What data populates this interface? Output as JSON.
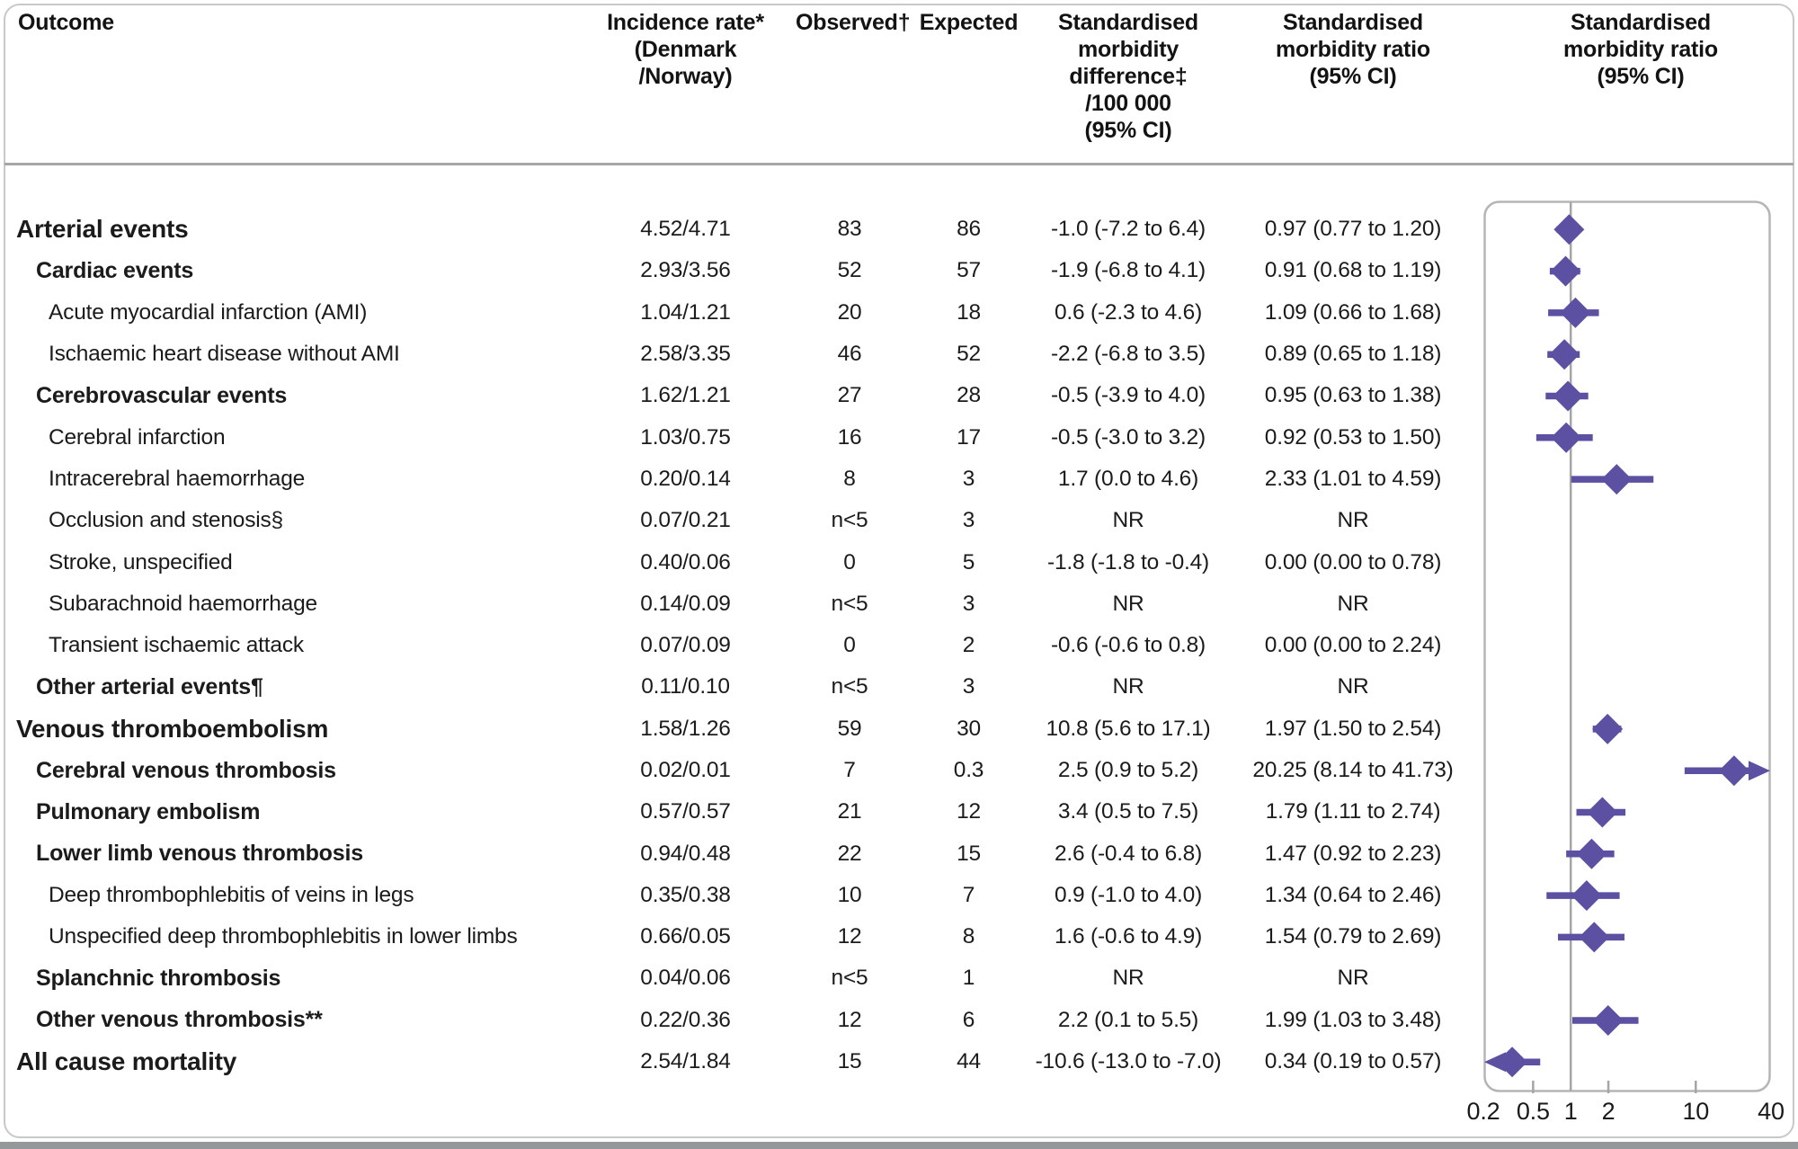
{
  "figure": {
    "columns": [
      {
        "id": "outcome",
        "label": "Outcome"
      },
      {
        "id": "incidence_rate",
        "label": "Incidence rate*\n(Denmark\n/Norway)"
      },
      {
        "id": "observed",
        "label": "Observed†"
      },
      {
        "id": "expected",
        "label": "Expected"
      },
      {
        "id": "smr_difference",
        "label": "Standardised\nmorbidity\ndifference‡\n/100 000\n(95% CI)"
      },
      {
        "id": "smr_ratio",
        "label": "Standardised\nmorbidity ratio\n(95% CI)"
      },
      {
        "id": "smr_ratio_plot",
        "label": "Standardised\nmorbidity ratio\n(95% CI)"
      }
    ]
  },
  "chart_data": {
    "type": "scatter",
    "variant": "forest-plot",
    "panel_title": "Standardised morbidity ratio (95% CI)",
    "x_scale": "log",
    "x_range": [
      0.2,
      40
    ],
    "x_ticks": [
      0.2,
      0.5,
      1,
      2,
      10,
      40
    ],
    "x_tick_labels": [
      "0.2",
      "0.5",
      "1",
      "2",
      "10",
      "40"
    ],
    "tick_marks": [
      0.5,
      2,
      10
    ],
    "reference_line": 1,
    "marker_color": "#5b50a2",
    "frame_color": "#b5b5b5",
    "axis_color": "#a5a5a5",
    "rows": [
      {
        "label": "Arterial events",
        "level": 0,
        "incidence_rate": "4.52/4.71",
        "observed": "83",
        "expected": "86",
        "smr_difference": "-1.0 (-7.2 to 6.4)",
        "smr_ratio": "0.97 (0.77 to 1.20)",
        "smr": 0.97,
        "lo": 0.77,
        "hi": 1.2,
        "clip": null
      },
      {
        "label": "Cardiac events",
        "level": 1,
        "incidence_rate": "2.93/3.56",
        "observed": "52",
        "expected": "57",
        "smr_difference": "-1.9 (-6.8 to 4.1)",
        "smr_ratio": "0.91 (0.68 to 1.19)",
        "smr": 0.91,
        "lo": 0.68,
        "hi": 1.19,
        "clip": null
      },
      {
        "label": "Acute myocardial infarction (AMI)",
        "level": 2,
        "incidence_rate": "1.04/1.21",
        "observed": "20",
        "expected": "18",
        "smr_difference": "0.6 (-2.3 to 4.6)",
        "smr_ratio": "1.09 (0.66 to 1.68)",
        "smr": 1.09,
        "lo": 0.66,
        "hi": 1.68,
        "clip": null
      },
      {
        "label": "Ischaemic heart disease without AMI",
        "level": 2,
        "incidence_rate": "2.58/3.35",
        "observed": "46",
        "expected": "52",
        "smr_difference": "-2.2 (-6.8 to 3.5)",
        "smr_ratio": "0.89 (0.65 to 1.18)",
        "smr": 0.89,
        "lo": 0.65,
        "hi": 1.18,
        "clip": null
      },
      {
        "label": "Cerebrovascular events",
        "level": 1,
        "incidence_rate": "1.62/1.21",
        "observed": "27",
        "expected": "28",
        "smr_difference": "-0.5 (-3.9 to 4.0)",
        "smr_ratio": "0.95 (0.63 to 1.38)",
        "smr": 0.95,
        "lo": 0.63,
        "hi": 1.38,
        "clip": null
      },
      {
        "label": "Cerebral infarction",
        "level": 2,
        "incidence_rate": "1.03/0.75",
        "observed": "16",
        "expected": "17",
        "smr_difference": "-0.5 (-3.0 to 3.2)",
        "smr_ratio": "0.92 (0.53 to 1.50)",
        "smr": 0.92,
        "lo": 0.53,
        "hi": 1.5,
        "clip": null
      },
      {
        "label": "Intracerebral haemorrhage",
        "level": 2,
        "incidence_rate": "0.20/0.14",
        "observed": "8",
        "expected": "3",
        "smr_difference": "1.7 (0.0 to 4.6)",
        "smr_ratio": "2.33 (1.01 to 4.59)",
        "smr": 2.33,
        "lo": 1.01,
        "hi": 4.59,
        "clip": null
      },
      {
        "label": "Occlusion and stenosis§",
        "level": 2,
        "incidence_rate": "0.07/0.21",
        "observed": "n<5",
        "expected": "3",
        "smr_difference": "NR",
        "smr_ratio": "NR",
        "smr": null,
        "lo": null,
        "hi": null,
        "clip": null
      },
      {
        "label": "Stroke, unspecified",
        "level": 2,
        "incidence_rate": "0.40/0.06",
        "observed": "0",
        "expected": "5",
        "smr_difference": "-1.8 (-1.8 to -0.4)",
        "smr_ratio": "0.00 (0.00 to 0.78)",
        "smr": null,
        "lo": null,
        "hi": null,
        "clip": null
      },
      {
        "label": "Subarachnoid haemorrhage",
        "level": 2,
        "incidence_rate": "0.14/0.09",
        "observed": "n<5",
        "expected": "3",
        "smr_difference": "NR",
        "smr_ratio": "NR",
        "smr": null,
        "lo": null,
        "hi": null,
        "clip": null
      },
      {
        "label": "Transient ischaemic attack",
        "level": 2,
        "incidence_rate": "0.07/0.09",
        "observed": "0",
        "expected": "2",
        "smr_difference": "-0.6 (-0.6 to 0.8)",
        "smr_ratio": "0.00 (0.00 to 2.24)",
        "smr": null,
        "lo": null,
        "hi": null,
        "clip": null
      },
      {
        "label": "Other arterial events¶",
        "level": 1,
        "incidence_rate": "0.11/0.10",
        "observed": "n<5",
        "expected": "3",
        "smr_difference": "NR",
        "smr_ratio": "NR",
        "smr": null,
        "lo": null,
        "hi": null,
        "clip": null
      },
      {
        "label": "Venous thromboembolism",
        "level": 0,
        "incidence_rate": "1.58/1.26",
        "observed": "59",
        "expected": "30",
        "smr_difference": "10.8 (5.6 to 17.1)",
        "smr_ratio": "1.97 (1.50 to 2.54)",
        "smr": 1.97,
        "lo": 1.5,
        "hi": 2.54,
        "clip": null
      },
      {
        "label": "Cerebral venous thrombosis",
        "level": 1,
        "incidence_rate": "0.02/0.01",
        "observed": "7",
        "expected": "0.3",
        "smr_difference": "2.5 (0.9 to 5.2)",
        "smr_ratio": "20.25 (8.14 to 41.73)",
        "smr": 20.25,
        "lo": 8.14,
        "hi": 41.73,
        "clip": "right"
      },
      {
        "label": "Pulmonary embolism",
        "level": 1,
        "incidence_rate": "0.57/0.57",
        "observed": "21",
        "expected": "12",
        "smr_difference": "3.4 (0.5 to 7.5)",
        "smr_ratio": "1.79 (1.11 to 2.74)",
        "smr": 1.79,
        "lo": 1.11,
        "hi": 2.74,
        "clip": null
      },
      {
        "label": "Lower limb venous thrombosis",
        "level": 1,
        "incidence_rate": "0.94/0.48",
        "observed": "22",
        "expected": "15",
        "smr_difference": "2.6 (-0.4 to 6.8)",
        "smr_ratio": "1.47 (0.92 to 2.23)",
        "smr": 1.47,
        "lo": 0.92,
        "hi": 2.23,
        "clip": null
      },
      {
        "label": "Deep thrombophlebitis of veins in legs",
        "level": 2,
        "incidence_rate": "0.35/0.38",
        "observed": "10",
        "expected": "7",
        "smr_difference": "0.9 (-1.0 to 4.0)",
        "smr_ratio": "1.34 (0.64 to 2.46)",
        "smr": 1.34,
        "lo": 0.64,
        "hi": 2.46,
        "clip": null
      },
      {
        "label": "Unspecified deep thrombophlebitis in lower limbs",
        "level": 2,
        "incidence_rate": "0.66/0.05",
        "observed": "12",
        "expected": "8",
        "smr_difference": "1.6 (-0.6 to 4.9)",
        "smr_ratio": "1.54 (0.79 to 2.69)",
        "smr": 1.54,
        "lo": 0.79,
        "hi": 2.69,
        "clip": null
      },
      {
        "label": "Splanchnic thrombosis",
        "level": 1,
        "incidence_rate": "0.04/0.06",
        "observed": "n<5",
        "expected": "1",
        "smr_difference": "NR",
        "smr_ratio": "NR",
        "smr": null,
        "lo": null,
        "hi": null,
        "clip": null
      },
      {
        "label": "Other venous thrombosis**",
        "level": 1,
        "incidence_rate": "0.22/0.36",
        "observed": "12",
        "expected": "6",
        "smr_difference": "2.2 (0.1 to 5.5)",
        "smr_ratio": "1.99 (1.03 to 3.48)",
        "smr": 1.99,
        "lo": 1.03,
        "hi": 3.48,
        "clip": null
      },
      {
        "label": "All cause mortality",
        "level": 0,
        "incidence_rate": "2.54/1.84",
        "observed": "15",
        "expected": "44",
        "smr_difference": "-10.6 (-13.0 to -7.0)",
        "smr_ratio": "0.34 (0.19 to 0.57)",
        "smr": 0.34,
        "lo": 0.19,
        "hi": 0.57,
        "clip": "left"
      }
    ]
  }
}
